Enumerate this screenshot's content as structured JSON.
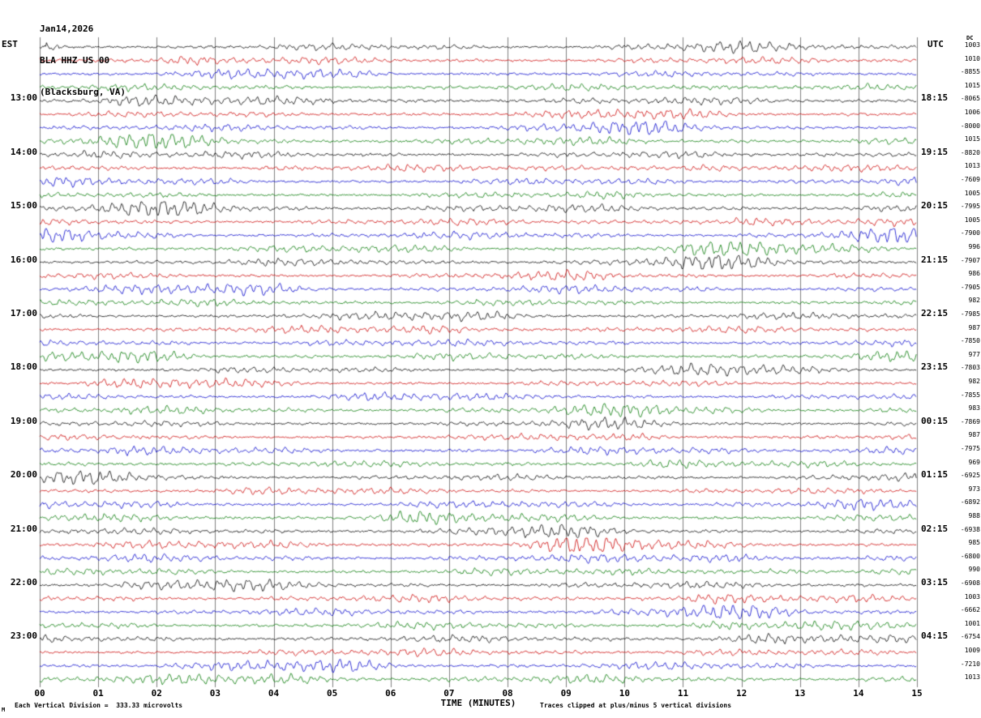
{
  "header": {
    "line1": "Jan14,2026",
    "line2": "BLA HHZ US 00",
    "line3": "(Blacksburg, VA)"
  },
  "axis": {
    "left_header": "EST",
    "right_header": "UTC",
    "dc_header": "DC",
    "x_axis_title": "TIME (MINUTES)",
    "x_tick_labels": [
      "00",
      "01",
      "02",
      "03",
      "04",
      "05",
      "06",
      "07",
      "08",
      "09",
      "10",
      "11",
      "12",
      "13",
      "14",
      "15"
    ]
  },
  "footer": {
    "left_note": "Each Vertical Division =  333.33 microvolts",
    "right_note": "Traces clipped at plus/minus 5 vertical divisions",
    "corner_mark": "M"
  },
  "chart_data": {
    "type": "line",
    "subtype": "helicorder-seismogram",
    "station": "BLA HHZ US 00",
    "location": "(Blacksburg, VA)",
    "date": "Jan14,2026",
    "x_range_minutes": [
      0,
      15
    ],
    "minutes_per_line": 15,
    "lines_per_hour": 4,
    "vertical_division_microvolts": 333.33,
    "clip_divisions": 5,
    "background_color": "#ffffff",
    "grid_color": "#808080",
    "text_color": "#000000",
    "color_cycle": [
      "#000000",
      "#cc0000",
      "#0000cc",
      "#007700"
    ],
    "traces": [
      {
        "est": "",
        "utc": "",
        "dc": 1003
      },
      {
        "est": "",
        "utc": "",
        "dc": 1010
      },
      {
        "est": "",
        "utc": "",
        "dc": -8855
      },
      {
        "est": "",
        "utc": "",
        "dc": 1015
      },
      {
        "est": "13:00",
        "utc": "18:15",
        "dc": -8065
      },
      {
        "est": "",
        "utc": "",
        "dc": 1006
      },
      {
        "est": "",
        "utc": "",
        "dc": -8000
      },
      {
        "est": "",
        "utc": "",
        "dc": 1015
      },
      {
        "est": "14:00",
        "utc": "19:15",
        "dc": -8820
      },
      {
        "est": "",
        "utc": "",
        "dc": 1013
      },
      {
        "est": "",
        "utc": "",
        "dc": -7609
      },
      {
        "est": "",
        "utc": "",
        "dc": 1005
      },
      {
        "est": "15:00",
        "utc": "20:15",
        "dc": -7995
      },
      {
        "est": "",
        "utc": "",
        "dc": 1005
      },
      {
        "est": "",
        "utc": "",
        "dc": -7900
      },
      {
        "est": "",
        "utc": "",
        "dc": 996
      },
      {
        "est": "16:00",
        "utc": "21:15",
        "dc": -7907
      },
      {
        "est": "",
        "utc": "",
        "dc": 986
      },
      {
        "est": "",
        "utc": "",
        "dc": -7905
      },
      {
        "est": "",
        "utc": "",
        "dc": 982
      },
      {
        "est": "17:00",
        "utc": "22:15",
        "dc": -7985
      },
      {
        "est": "",
        "utc": "",
        "dc": 987
      },
      {
        "est": "",
        "utc": "",
        "dc": -7850
      },
      {
        "est": "",
        "utc": "",
        "dc": 977
      },
      {
        "est": "18:00",
        "utc": "23:15",
        "dc": -7803
      },
      {
        "est": "",
        "utc": "",
        "dc": 982
      },
      {
        "est": "",
        "utc": "",
        "dc": -7855
      },
      {
        "est": "",
        "utc": "",
        "dc": 983
      },
      {
        "est": "19:00",
        "utc": "00:15",
        "dc": -7869
      },
      {
        "est": "",
        "utc": "",
        "dc": 987
      },
      {
        "est": "",
        "utc": "",
        "dc": -7975
      },
      {
        "est": "",
        "utc": "",
        "dc": 969
      },
      {
        "est": "20:00",
        "utc": "01:15",
        "dc": -6925
      },
      {
        "est": "",
        "utc": "",
        "dc": 973
      },
      {
        "est": "",
        "utc": "",
        "dc": -6892
      },
      {
        "est": "",
        "utc": "",
        "dc": 988
      },
      {
        "est": "21:00",
        "utc": "02:15",
        "dc": -6938
      },
      {
        "est": "",
        "utc": "",
        "dc": 985
      },
      {
        "est": "",
        "utc": "",
        "dc": -6800
      },
      {
        "est": "",
        "utc": "",
        "dc": 990
      },
      {
        "est": "22:00",
        "utc": "03:15",
        "dc": -6908
      },
      {
        "est": "",
        "utc": "",
        "dc": 1003
      },
      {
        "est": "",
        "utc": "",
        "dc": -6662
      },
      {
        "est": "",
        "utc": "",
        "dc": 1001
      },
      {
        "est": "23:00",
        "utc": "04:15",
        "dc": -6754
      },
      {
        "est": "",
        "utc": "",
        "dc": 1009
      },
      {
        "est": "",
        "utc": "",
        "dc": -7210
      },
      {
        "est": "",
        "utc": "",
        "dc": 1013
      }
    ]
  }
}
